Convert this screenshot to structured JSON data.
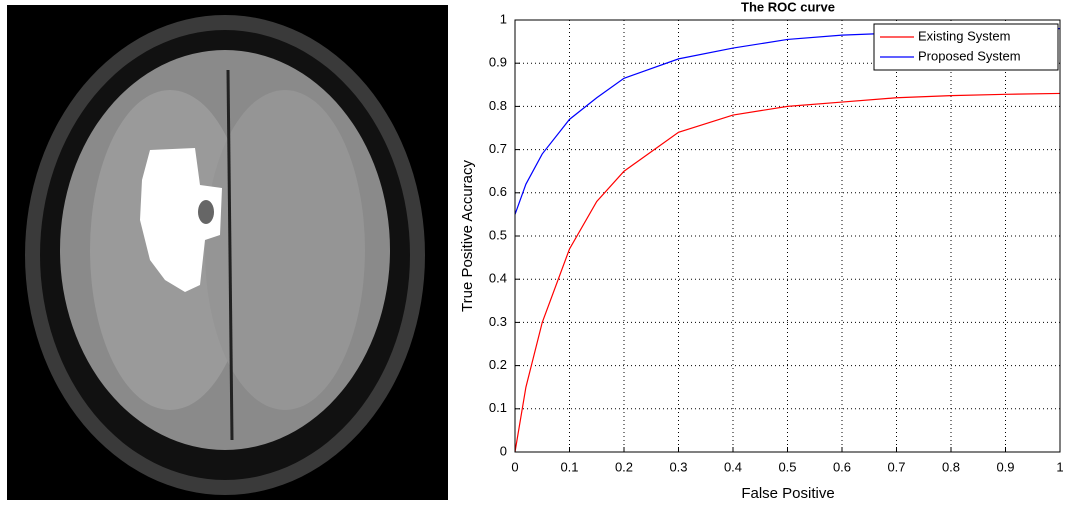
{
  "chart_data": {
    "type": "line",
    "title": "The ROC curve",
    "x_label": "False Positive",
    "y_label": "True Positive Accuracy",
    "x": [
      0,
      0.02,
      0.05,
      0.1,
      0.15,
      0.2,
      0.3,
      0.4,
      0.5,
      0.6,
      0.7,
      0.8,
      0.9,
      1
    ],
    "series": [
      {
        "name": "Existing System",
        "color": "#ff0000",
        "values": [
          0,
          0.15,
          0.3,
          0.47,
          0.58,
          0.65,
          0.74,
          0.78,
          0.8,
          0.81,
          0.82,
          0.825,
          0.828,
          0.83
        ]
      },
      {
        "name": "Proposed System",
        "color": "#0000ff",
        "values": [
          0.55,
          0.62,
          0.69,
          0.77,
          0.82,
          0.865,
          0.91,
          0.935,
          0.955,
          0.965,
          0.97,
          0.975,
          0.978,
          0.98
        ]
      }
    ],
    "xlim": [
      0,
      1
    ],
    "ylim": [
      0,
      1
    ],
    "xticks": [
      0,
      0.1,
      0.2,
      0.3,
      0.4,
      0.5,
      0.6,
      0.7,
      0.8,
      0.9,
      1
    ],
    "yticks": [
      0,
      0.1,
      0.2,
      0.3,
      0.4,
      0.5,
      0.6,
      0.7,
      0.8,
      0.9,
      1
    ],
    "grid": true,
    "legend": "upper-right"
  }
}
